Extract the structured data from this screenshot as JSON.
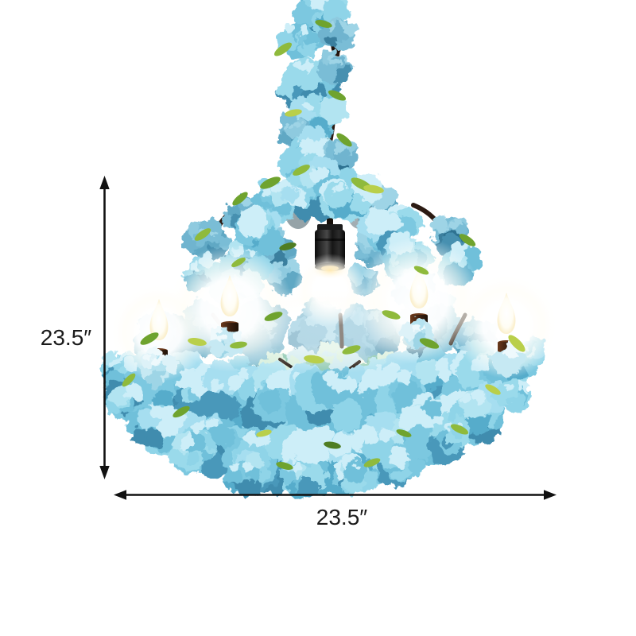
{
  "dimensions": {
    "height_label": "23.5″",
    "width_label": "23.5″"
  },
  "icons": {
    "height_arrows": "double-headed-vertical-arrow-icon",
    "width_arrows": "double-headed-horizontal-arrow-icon"
  },
  "colors": {
    "background": "#ffffff",
    "dimension_line": "#111111",
    "flower_blue": "#7cc8e0",
    "flower_blue_light": "#b2e4f1",
    "flower_blue_deep": "#4898ba",
    "leaf_green": "#8fba3c",
    "branch_brown": "#2b1a12",
    "candle_glow": "#fffdf4",
    "fixture_black": "#1c1c1c"
  }
}
